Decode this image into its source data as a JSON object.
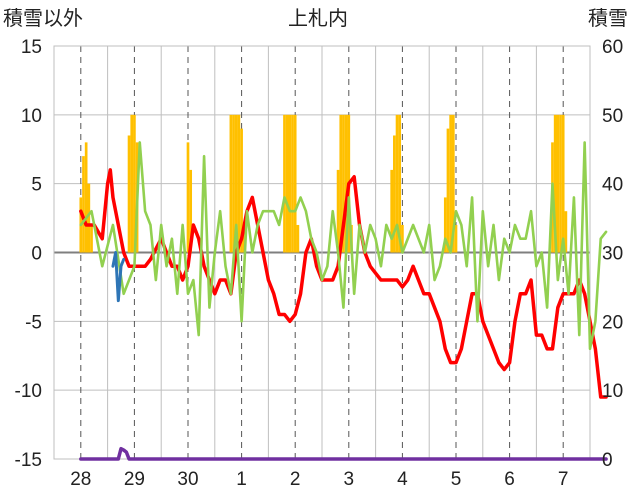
{
  "chart_data": {
    "type": "line",
    "title": "上札内",
    "left_axis_label": "積雪以外",
    "right_axis_label": "積雪",
    "x_categories": [
      "28",
      "29",
      "30",
      "1",
      "2",
      "3",
      "4",
      "5",
      "6",
      "7"
    ],
    "y_left": {
      "min": -15,
      "max": 15,
      "ticks": [
        -15,
        -10,
        -5,
        0,
        5,
        10,
        15
      ]
    },
    "y_right": {
      "min": 0,
      "max": 60,
      "ticks": [
        0,
        10,
        20,
        30,
        40,
        50,
        60
      ]
    },
    "grid": {
      "horizontal": "solid",
      "vertical": "dashed"
    },
    "colors": {
      "temperature": "#ff0000",
      "other_series": "#92d050",
      "bars": "#ffc000",
      "precip_blue": "#2e75b6",
      "snow_depth": "#7030a0",
      "zero_line": "#7f7f7f",
      "grid": "#bfbfbf",
      "axis_text": "#222222"
    },
    "series": [
      {
        "name": "temperature",
        "axis": "left",
        "style": "line",
        "x": [
          0,
          0.1,
          0.25,
          0.4,
          0.5,
          0.55,
          0.6,
          0.7,
          0.8,
          0.9,
          1.0,
          1.1,
          1.2,
          1.3,
          1.5,
          1.6,
          1.7,
          1.8,
          1.9,
          2.0,
          2.1,
          2.2,
          2.3,
          2.4,
          2.5,
          2.6,
          2.7,
          2.8,
          2.9,
          3.0,
          3.1,
          3.2,
          3.3,
          3.4,
          3.5,
          3.6,
          3.7,
          3.8,
          3.9,
          4.0,
          4.1,
          4.2,
          4.3,
          4.4,
          4.5,
          4.6,
          4.7,
          4.8,
          4.9,
          5.0,
          5.1,
          5.2,
          5.3,
          5.4,
          5.5,
          5.6,
          5.7,
          5.8,
          5.9,
          6.0,
          6.1,
          6.2,
          6.3,
          6.4,
          6.5,
          6.6,
          6.7,
          6.8,
          6.9,
          7.0,
          7.1,
          7.2,
          7.3,
          7.4,
          7.5,
          7.6,
          7.7,
          7.8,
          7.9,
          8.0,
          8.1,
          8.2,
          8.3,
          8.4,
          8.5,
          8.6,
          8.7,
          8.8,
          8.9,
          9.0,
          9.1,
          9.2,
          9.3,
          9.4,
          9.5,
          9.6,
          9.7,
          9.8
        ],
        "y": [
          3,
          2,
          2,
          1,
          5,
          6,
          4,
          2,
          0,
          -1,
          -1,
          -1,
          -1,
          -0.5,
          1,
          0,
          -1,
          -1,
          -2,
          -1,
          2,
          1,
          -1,
          -2,
          -3,
          -2,
          -2,
          -3,
          0,
          1,
          3,
          4,
          2,
          0,
          -2,
          -3,
          -4.5,
          -4.5,
          -5,
          -4.5,
          -3,
          0,
          1,
          -1,
          -2,
          -2,
          -2,
          -1,
          2,
          5,
          5.5,
          2,
          0,
          -1,
          -1.5,
          -2,
          -2,
          -2,
          -2,
          -2.5,
          -2,
          -1,
          -2,
          -3,
          -3,
          -4,
          -5,
          -7,
          -8,
          -8,
          -7,
          -5,
          -3,
          -3,
          -5,
          -6,
          -7,
          -8,
          -8.5,
          -8,
          -5,
          -3,
          -3,
          -2,
          -6,
          -6,
          -7,
          -7,
          -4,
          -3,
          -3,
          -3,
          -2,
          -3,
          -5,
          -7,
          -10.5,
          -10.5
        ],
        "description": "red line, estimated"
      },
      {
        "name": "green_series",
        "axis": "left",
        "style": "line",
        "x": [
          0,
          0.2,
          0.4,
          0.6,
          0.8,
          1.0,
          1.1,
          1.2,
          1.3,
          1.4,
          1.5,
          1.6,
          1.7,
          1.8,
          1.9,
          2.0,
          2.1,
          2.2,
          2.3,
          2.4,
          2.5,
          2.6,
          2.7,
          2.8,
          2.9,
          3.0,
          3.1,
          3.2,
          3.3,
          3.4,
          3.5,
          3.6,
          3.7,
          3.8,
          3.9,
          4.0,
          4.1,
          4.2,
          4.3,
          4.4,
          4.5,
          4.6,
          4.7,
          4.8,
          4.9,
          5.0,
          5.1,
          5.2,
          5.3,
          5.4,
          5.5,
          5.6,
          5.7,
          5.8,
          5.9,
          6.0,
          6.1,
          6.2,
          6.3,
          6.4,
          6.5,
          6.6,
          6.7,
          6.8,
          6.9,
          7.0,
          7.1,
          7.2,
          7.3,
          7.4,
          7.5,
          7.6,
          7.7,
          7.8,
          7.9,
          8.0,
          8.1,
          8.2,
          8.3,
          8.4,
          8.5,
          8.6,
          8.7,
          8.8,
          8.9,
          9.0,
          9.1,
          9.2,
          9.3,
          9.4,
          9.5,
          9.6,
          9.7,
          9.8
        ],
        "y": [
          2,
          3,
          -1,
          2,
          -3,
          -1,
          8,
          3,
          2,
          -2,
          2,
          -1,
          1,
          -3,
          2,
          -3,
          -2,
          -6,
          7,
          -4,
          0,
          3,
          -1,
          -3,
          2,
          -5,
          3,
          0,
          2,
          3,
          3,
          3,
          2,
          4,
          3,
          3,
          4,
          3,
          1,
          0,
          -2,
          -1,
          3,
          0,
          -4,
          4,
          -3,
          2,
          0,
          2,
          1,
          -1,
          2,
          1,
          2,
          0,
          1,
          2,
          1,
          0,
          2,
          -2,
          -1,
          1,
          0,
          3,
          2,
          -1,
          4,
          -5,
          3,
          -1,
          2,
          -2,
          1,
          0,
          2,
          1,
          1,
          3,
          -1,
          0,
          -4,
          5,
          -2,
          1,
          -3,
          4,
          -6,
          8,
          -7,
          -5,
          1,
          1.5
        ],
        "description": "green line, estimated"
      },
      {
        "name": "precip_blue",
        "axis": "left",
        "style": "line",
        "x": [
          0.6,
          0.65,
          0.7,
          0.75,
          0.8
        ],
        "y": [
          -1,
          0,
          -3.5,
          -1,
          -0.5
        ],
        "description": "short blue line around day 28-29"
      },
      {
        "name": "snow_depth",
        "axis": "right",
        "style": "line",
        "x": [
          0,
          0.7,
          0.75,
          0.8,
          0.85,
          0.9,
          1.0,
          2.0,
          3.0,
          4.0,
          5.0,
          6.0,
          7.0,
          8.0,
          9.0,
          9.8
        ],
        "y": [
          0,
          0,
          1.5,
          1.3,
          1.0,
          0,
          0,
          0,
          0,
          0,
          0,
          0,
          0,
          0,
          0,
          0
        ],
        "description": "purple line near zero on right axis"
      },
      {
        "name": "yellow_bars",
        "axis": "right",
        "style": "bar",
        "x": [
          0.0,
          0.05,
          0.1,
          0.15,
          0.2,
          0.9,
          0.95,
          1.0,
          1.05,
          2.0,
          2.05,
          2.8,
          2.85,
          2.9,
          2.95,
          3.0,
          3.05,
          3.8,
          3.85,
          3.9,
          3.95,
          4.0,
          4.05,
          4.8,
          4.85,
          4.9,
          4.95,
          5.0,
          5.05,
          5.8,
          5.85,
          5.9,
          5.95,
          6.0,
          6.8,
          6.85,
          6.9,
          6.95,
          7.0,
          8.8,
          8.85,
          8.9,
          8.95,
          9.0,
          9.05
        ],
        "y": [
          38,
          44,
          46,
          40,
          34,
          47,
          50,
          50,
          46,
          46,
          42,
          50,
          50,
          50,
          50,
          48,
          34,
          50,
          50,
          50,
          50,
          50,
          34,
          42,
          50,
          50,
          50,
          50,
          34,
          42,
          47,
          50,
          50,
          34,
          38,
          48,
          50,
          50,
          34,
          46,
          50,
          50,
          50,
          50,
          36
        ],
        "description": "orange/yellow bars, estimated"
      }
    ]
  }
}
